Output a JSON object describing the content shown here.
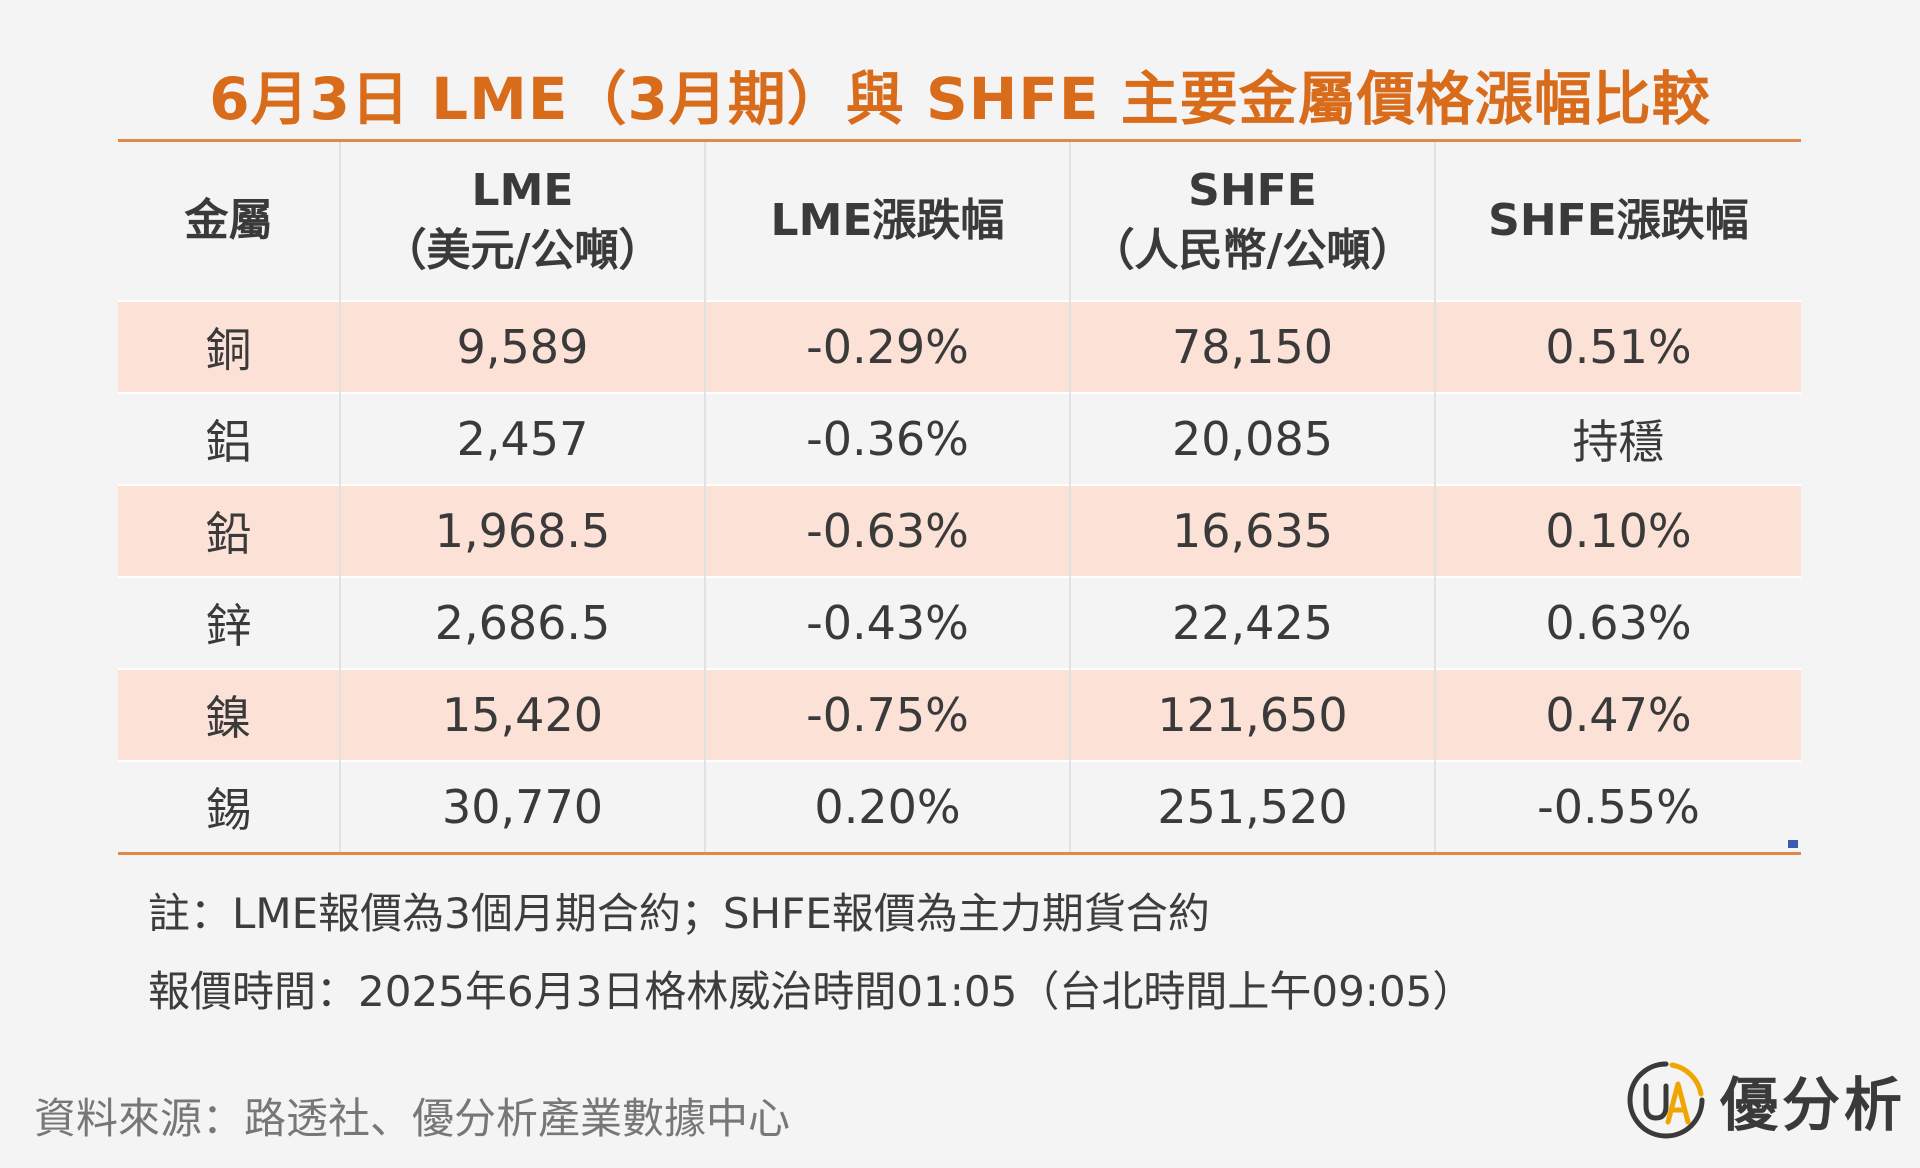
{
  "title": "6月3日 LME（3月期）與 SHFE 主要金屬價格漲幅比較",
  "colors": {
    "accent": "#d86c1b",
    "row_shade": "#fbe1d6",
    "background": "#f4f4f4"
  },
  "chart_data": {
    "type": "table",
    "title": "6月3日 LME（3月期）與 SHFE 主要金屬價格漲幅比較",
    "columns": [
      {
        "line1": "金屬",
        "line2": ""
      },
      {
        "line1": "LME",
        "line2": "（美元/公噸）"
      },
      {
        "line1": "LME漲跌幅",
        "line2": ""
      },
      {
        "line1": "SHFE",
        "line2": "（人民幣/公噸）"
      },
      {
        "line1": "SHFE漲跌幅",
        "line2": ""
      }
    ],
    "rows": [
      [
        "銅",
        "9,589",
        "-0.29%",
        "78,150",
        "0.51%"
      ],
      [
        "鋁",
        "2,457",
        "-0.36%",
        "20,085",
        "持穩"
      ],
      [
        "鉛",
        "1,968.5",
        "-0.63%",
        "16,635",
        "0.10%"
      ],
      [
        "鋅",
        "2,686.5",
        "-0.43%",
        "22,425",
        "0.63%"
      ],
      [
        "鎳",
        "15,420",
        "-0.75%",
        "121,650",
        "0.47%"
      ],
      [
        "錫",
        "30,770",
        "0.20%",
        "251,520",
        "-0.55%"
      ]
    ]
  },
  "notes": {
    "note1": "註：LME報價為3個月期合約；SHFE報價為主力期貨合約",
    "note2": "報價時間：2025年6月3日格林威治時間01:05（台北時間上午09:05）"
  },
  "source": "資料來源：路透社、優分析產業數據中心",
  "logo": {
    "mark_text": "UA",
    "text": "優分析",
    "icon": "ua-logo-icon"
  }
}
